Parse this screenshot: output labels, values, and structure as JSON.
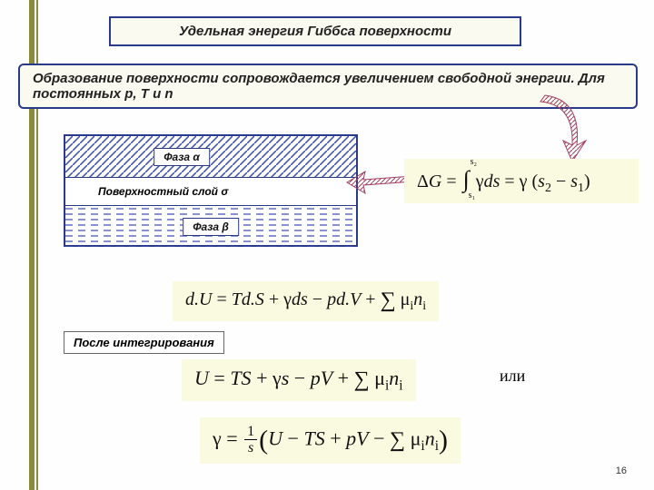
{
  "title": "Удельная энергия Гиббса поверхности",
  "description": "Образование поверхности сопровождается увеличением свободной энергии. Для постоянных p, T и n",
  "diagram": {
    "phase_alpha": "Фаза α",
    "surface_layer": "Поверхностный слой σ",
    "phase_beta": "Фаза β",
    "border_color": "#2a3a8a",
    "hatch_color": "#3a4aaa"
  },
  "equations": {
    "eq1_html": "Δ<i>G</i> = <span class='int'>∫<span class='top'>s₂</span><span class='bot'>s₁</span></span> γ<i>ds</i> = γ (<i>s</i><span class='sub'>2</span> − <i>s</i><span class='sub'>1</span>)",
    "eq2_html": "<i>d.U</i> = <i>Td.S</i> + γ<i>ds</i> − <i>pd.V</i> + <span class='sigma'>∑</span> μ<span class='sub'>i</span><i>n</i><span class='sub'>i</span>",
    "eq3_html": "<i>U</i> = <i>TS</i> + γ<i>s</i> − <i>pV</i> + <span class='sigma'>∑</span> μ<span class='sub'>i</span><i>n</i><span class='sub'>i</span>",
    "eq4_html": "γ = <span class='frac'><span class='n'>1</span><span class='d'><i>s</i></span></span><span class='big-paren'>(</span><i>U</i> − <i>TS</i> + <i>pV</i> − <span class='sigma'>∑</span> μ<span class='sub'>i</span><i>n</i><span class='sub'>i</span><span class='big-paren'>)</span>"
  },
  "after_integration": "После интегрирования",
  "or_word": "или",
  "page_number": "16",
  "colors": {
    "stripe": "#8a8a3a",
    "box_bg": "#fafaf0",
    "eq_bg": "#fafae0",
    "border": "#2a3a8a"
  },
  "arrows": {
    "a1": {
      "fill": "#e8c8d0",
      "stroke": "#a04060"
    },
    "a2": {
      "fill": "#e8c8d0",
      "stroke": "#a04060"
    }
  }
}
